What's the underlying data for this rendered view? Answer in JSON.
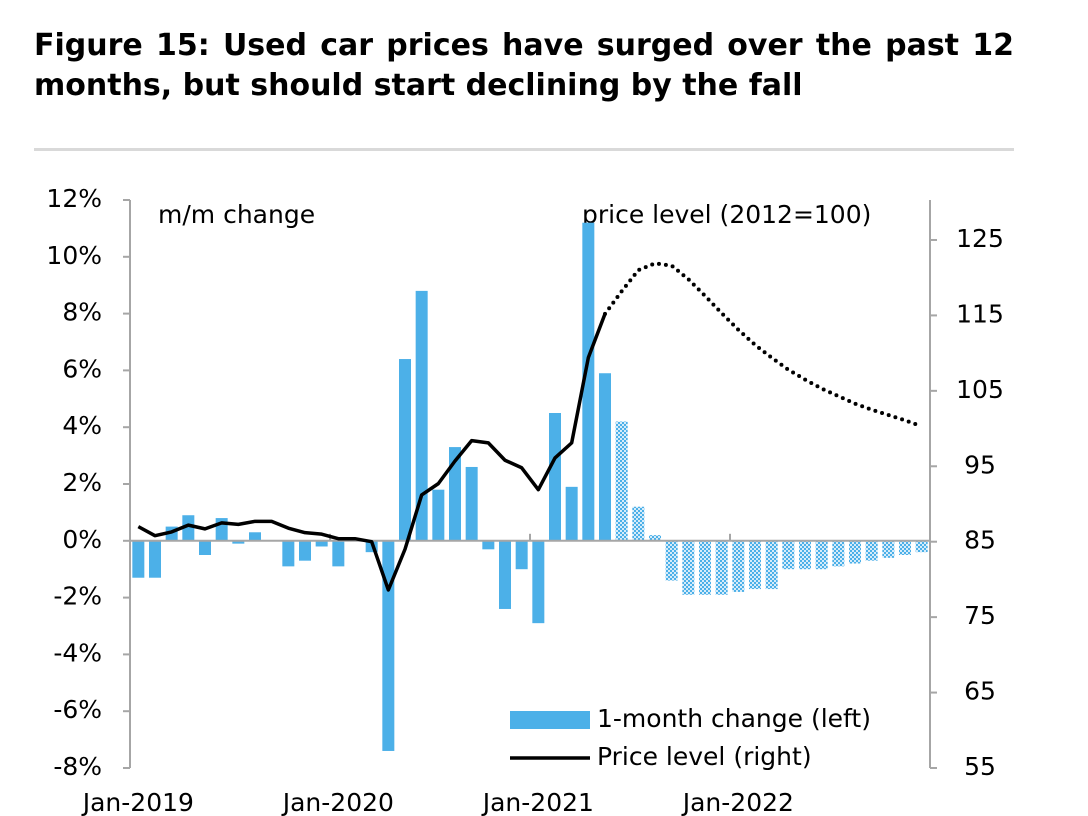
{
  "chart_data": {
    "type": "bar",
    "title": "Figure 15: Used car prices have surged over the past 12 months, but should start declining by the fall",
    "annotations": [
      "m/m change",
      "price level  (2012=100)"
    ],
    "categories": [
      "Jan-2019",
      null,
      null,
      null,
      null,
      null,
      null,
      null,
      null,
      null,
      null,
      null,
      "Jan-2020",
      null,
      null,
      null,
      null,
      null,
      null,
      null,
      null,
      null,
      null,
      null,
      "Jan-2021",
      null,
      null,
      null,
      null,
      null,
      null,
      null,
      null,
      null,
      null,
      null,
      "Jan-2022",
      null,
      null,
      null,
      null,
      null,
      null,
      null,
      null,
      null,
      null,
      null
    ],
    "ylim": [
      -8,
      12
    ],
    "yticks": [
      {
        "value": -8,
        "label": "-8%"
      },
      {
        "value": -6,
        "label": "-6%"
      },
      {
        "value": -4,
        "label": "-4%"
      },
      {
        "value": -2,
        "label": "-2%"
      },
      {
        "value": 0,
        "label": "0%"
      },
      {
        "value": 2,
        "label": "2%"
      },
      {
        "value": 4,
        "label": "4%"
      },
      {
        "value": 6,
        "label": "6%"
      },
      {
        "value": 8,
        "label": "8%"
      },
      {
        "value": 10,
        "label": "10%"
      },
      {
        "value": 12,
        "label": "12%"
      }
    ],
    "y2lim": [
      55,
      130.3
    ],
    "y2ticks": [
      55,
      65,
      75,
      85,
      95,
      105,
      115,
      125
    ],
    "series": [
      {
        "name": "1-month change (left)",
        "type": "bar",
        "color": "#4cb0e8",
        "values": [
          -1.3,
          -1.3,
          0.5,
          0.9,
          -0.5,
          0.8,
          -0.1,
          0.3,
          0,
          -0.9,
          -0.7,
          -0.2,
          -0.9,
          0,
          -0.4,
          -7.4,
          6.4,
          8.8,
          1.8,
          3.3,
          2.6,
          -0.3,
          -2.4,
          -1.0,
          -2.9,
          4.5,
          1.9,
          11.2,
          5.9,
          null,
          null,
          null,
          null,
          null,
          null,
          null,
          null,
          null,
          null,
          null,
          null,
          null,
          null,
          null,
          null,
          null,
          null,
          null
        ]
      },
      {
        "type": "bar",
        "color": "#4cb0e8",
        "pattern": "hatched",
        "values": [
          null,
          null,
          null,
          null,
          null,
          null,
          null,
          null,
          null,
          null,
          null,
          null,
          null,
          null,
          null,
          null,
          null,
          null,
          null,
          null,
          null,
          null,
          null,
          null,
          null,
          null,
          null,
          null,
          null,
          4.2,
          1.2,
          0.2,
          -1.4,
          -1.9,
          -1.9,
          -1.9,
          -1.8,
          -1.7,
          -1.7,
          -1.0,
          -1.0,
          -1.0,
          -0.9,
          -0.8,
          -0.7,
          -0.6,
          -0.5,
          -0.4
        ]
      },
      {
        "name": "Price level (right)",
        "type": "line",
        "axis": "y2",
        "color": "#000000",
        "values": [
          87.0,
          85.8,
          86.3,
          87.2,
          86.7,
          87.5,
          87.3,
          87.7,
          87.7,
          86.8,
          86.2,
          86.0,
          85.4,
          85.4,
          85.0,
          78.6,
          84.0,
          91.2,
          92.7,
          95.7,
          98.4,
          98.1,
          95.8,
          94.8,
          91.9,
          96.1,
          98.1,
          109.4,
          115.2,
          null,
          null,
          null,
          null,
          null,
          null,
          null,
          null,
          null,
          null,
          null,
          null,
          null,
          null,
          null,
          null,
          null,
          null,
          null
        ]
      },
      {
        "type": "line",
        "axis": "y2",
        "color": "#000000",
        "dash": "dotted",
        "values": [
          null,
          null,
          null,
          null,
          null,
          null,
          null,
          null,
          null,
          null,
          null,
          null,
          null,
          null,
          null,
          null,
          null,
          null,
          null,
          null,
          null,
          null,
          null,
          null,
          null,
          null,
          null,
          null,
          115.2,
          118.2,
          121.0,
          121.9,
          121.6,
          119.8,
          117.6,
          115.3,
          113.1,
          111.1,
          109.4,
          107.8,
          106.5,
          105.3,
          104.3,
          103.3,
          102.5,
          101.8,
          101.1,
          100.3
        ]
      }
    ]
  }
}
